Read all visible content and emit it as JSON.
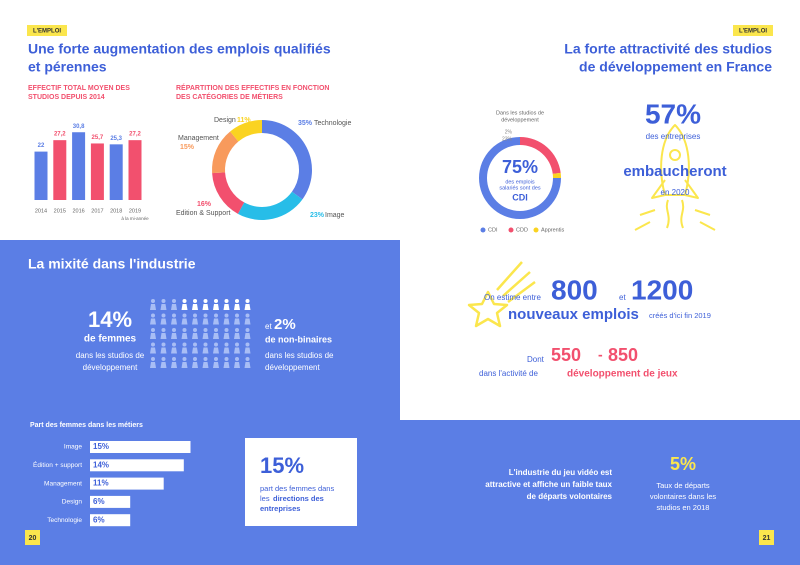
{
  "left_page": {
    "tag": "L'EMPLOI",
    "title": [
      "Une forte augmentation des emplois qualifiés",
      "et pérennes"
    ],
    "staff_chart": {
      "type": "bar",
      "title": [
        "EFFECTIF TOTAL MOYEN DES",
        "STUDIOS DEPUIS 2014"
      ],
      "categories": [
        "2014",
        "2015",
        "2016",
        "2017",
        "2018",
        "2019"
      ],
      "note": "à la mi-année",
      "values": [
        22,
        27.2,
        30.8,
        25.7,
        25.3,
        27.2
      ],
      "value_labels": [
        "22",
        "27,2",
        "30,8",
        "25,7",
        "25,3",
        "27,2"
      ],
      "colors": [
        "#5b7ee5",
        "#f2506e",
        "#5b7ee5",
        "#f2506e",
        "#5b7ee5",
        "#f2506e"
      ]
    },
    "jobs_donut": {
      "type": "donut",
      "title": [
        "RÉPARTITION DES EFFECTIFS EN FONCTION",
        "DES CATÉGORIES DE MÉTIERS"
      ],
      "categories": [
        "Technologie",
        "Image",
        "Edition & Support",
        "Management",
        "Design"
      ],
      "values": [
        35,
        23,
        16,
        15,
        11
      ],
      "value_labels": [
        "35%",
        "23%",
        "16%",
        "15%",
        "11%"
      ],
      "colors": [
        "#5b7ee5",
        "#27bde8",
        "#f2506e",
        "#f89a5c",
        "#fad321"
      ]
    },
    "diversity": {
      "title": "La mixité dans l'industrie",
      "women": {
        "value": "14%",
        "label": "de femmes",
        "text": [
          "dans les studios de",
          "développement"
        ]
      },
      "non_binary": {
        "prefix": "et",
        "value": "2%",
        "label": "de non-binaires",
        "text": [
          "dans les studios de",
          "développement"
        ]
      }
    },
    "women_by_job": {
      "type": "hbar",
      "title": "Part des femmes dans les métiers",
      "categories": [
        "Image",
        "Édition + support",
        "Management",
        "Design",
        "Technologie"
      ],
      "values": [
        15,
        14,
        11,
        6,
        6
      ],
      "value_labels": [
        "15%",
        "14%",
        "11%",
        "6%",
        "6%"
      ]
    },
    "management": {
      "value": "15%",
      "line1": "part des femmes dans",
      "line2": "les",
      "bold": [
        "directions des",
        "entreprises"
      ]
    },
    "page_number": "20"
  },
  "right_page": {
    "tag": "L'EMPLOI",
    "title": [
      "La forte attractivité des studios",
      "de développement en France"
    ],
    "contracts": {
      "type": "donut",
      "title": [
        "Dans les studios de",
        "développement"
      ],
      "categories": [
        "CDI",
        "CDD",
        "Apprentis"
      ],
      "values": [
        75,
        23,
        2
      ],
      "value_labels": [
        "75%",
        "23%",
        "2%"
      ],
      "colors": [
        "#5b7ee5",
        "#f2506e",
        "#fad321"
      ],
      "center_text": [
        "des emplois",
        "salariés sont des"
      ]
    },
    "hiring": {
      "value": "57%",
      "text": "des entreprises",
      "highlight": "embaucheront",
      "year": "en 2020"
    },
    "new_jobs": {
      "intro": "On estime entre",
      "low": "800",
      "and": "et",
      "high": "1200",
      "label": "nouveaux emplois",
      "period": "créés d'ici fin 2019",
      "dont": "Dont",
      "dev_low": "550",
      "dash": "-",
      "dev_high": "850",
      "dev_text": "dans l'activité de",
      "dev_label": "développement de jeux"
    },
    "departures": {
      "text": [
        "L'industrie du jeu vidéo est",
        "attractive et affiche un faible taux",
        "de départs volontaires"
      ],
      "value": "5%",
      "caption": [
        "Taux de départs",
        "volontaires dans les",
        "studios en 2018"
      ]
    },
    "page_number": "21"
  }
}
